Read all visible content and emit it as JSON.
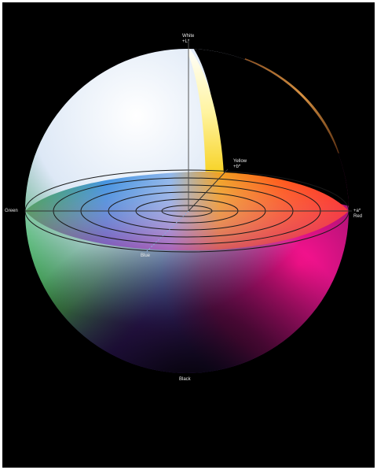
{
  "labels": {
    "white": {
      "name": "White",
      "sub": "+L*"
    },
    "yellow": {
      "name": "Yellow",
      "sub": "+b*"
    },
    "red": {
      "name": "Red",
      "sub": "+a*"
    },
    "green": {
      "name": "Green"
    },
    "blue": {
      "name": "Blue"
    },
    "black": {
      "name": "Black"
    }
  },
  "colors": {
    "background": "#000000",
    "frame": "#ffffff",
    "white": "#ffffff",
    "light_blue": "#c9dcf5",
    "blue": "#3f7fe0",
    "violet": "#5b2ea8",
    "magenta": "#e0157a",
    "red": "#ff1a10",
    "orange": "#ff8a00",
    "yellow": "#f5e000",
    "green": "#2aa838",
    "black": "#000000",
    "ring": "#1a1a1a",
    "shell_cutout": "#b8702a"
  }
}
